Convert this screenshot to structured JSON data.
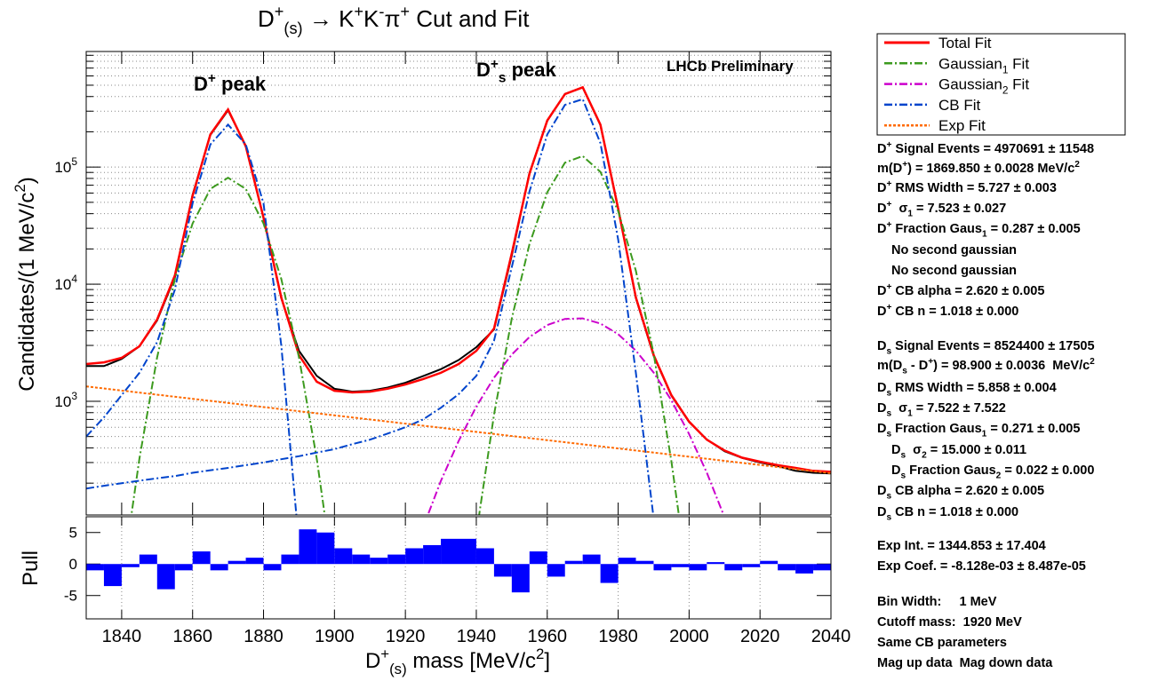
{
  "chart_data": [
    {
      "type": "line",
      "title": [
        {
          "text": "D"
        },
        {
          "text": "+",
          "script": "sup"
        },
        {
          "text": "(s)",
          "script": "sub"
        },
        {
          "text": " → K"
        },
        {
          "text": "+",
          "script": "sup"
        },
        {
          "text": "K"
        },
        {
          "text": "-",
          "script": "sup"
        },
        {
          "text": "π"
        },
        {
          "text": "+",
          "script": "sup"
        },
        {
          "text": " Cut and Fit"
        }
      ],
      "y_label": [
        {
          "text": "Candidates/(1 MeV/c"
        },
        {
          "text": "2",
          "script": "sup"
        },
        {
          "text": ")"
        }
      ],
      "log_y": true,
      "grid_y": true,
      "legend": "outside-right",
      "xlim": [
        1830,
        2040
      ],
      "xticks": [
        1840,
        1860,
        1880,
        1900,
        1920,
        1940,
        1960,
        1980,
        2000,
        2020,
        2040
      ],
      "ylim": [
        107,
        970000
      ],
      "yticks": [
        {
          "value": 1000,
          "label": "10",
          "exponent": "3"
        },
        {
          "value": 10000,
          "label": "10",
          "exponent": "4"
        },
        {
          "value": 100000,
          "label": "10",
          "exponent": "5"
        }
      ],
      "y_minor_ticks": [
        200,
        300,
        400,
        500,
        600,
        700,
        800,
        900,
        2000,
        3000,
        4000,
        5000,
        6000,
        7000,
        8000,
        9000,
        20000,
        30000,
        40000,
        50000,
        60000,
        70000,
        80000,
        90000,
        200000,
        300000,
        400000,
        500000,
        600000,
        700000,
        800000,
        900000
      ],
      "data": {
        "color": "#000000",
        "x": [
          1830,
          1835,
          1840,
          1845,
          1850,
          1855,
          1860,
          1865,
          1870,
          1875,
          1880,
          1885,
          1890,
          1895,
          1900,
          1905,
          1910,
          1915,
          1920,
          1925,
          1930,
          1935,
          1940,
          1945,
          1950,
          1955,
          1960,
          1965,
          1970,
          1975,
          1980,
          1985,
          1990,
          1995,
          2000,
          2005,
          2010,
          2015,
          2020,
          2025,
          2030,
          2035,
          2040
        ],
        "values": [
          2000,
          2000,
          2300,
          2950,
          4900,
          11500,
          58000,
          188000,
          305000,
          152000,
          37000,
          7600,
          2700,
          1650,
          1280,
          1210,
          1230,
          1310,
          1440,
          1640,
          1880,
          2250,
          2900,
          4100,
          17600,
          89000,
          248000,
          421000,
          478000,
          228000,
          44500,
          7600,
          2450,
          1120,
          665,
          472,
          375,
          328,
          300,
          280,
          255,
          245,
          242
        ]
      },
      "series": [
        {
          "name": "Total Fit",
          "color": "#ff0000",
          "line_style": "solid",
          "curves": [
            {
              "x": [
                1830,
                1835,
                1840,
                1845,
                1850,
                1855,
                1860,
                1865,
                1870,
                1875,
                1880,
                1885,
                1890,
                1895,
                1900,
                1905,
                1910,
                1915,
                1920,
                1925,
                1930,
                1935,
                1940,
                1945,
                1950,
                1955,
                1960,
                1965,
                1970,
                1975,
                1980,
                1985,
                1990,
                1995,
                2000,
                2005,
                2010,
                2015,
                2020,
                2025,
                2030,
                2035,
                2040
              ],
              "values": [
                2080,
                2150,
                2350,
                2950,
                5000,
                11900,
                57000,
                190000,
                310000,
                150000,
                37000,
                7700,
                2480,
                1470,
                1230,
                1190,
                1210,
                1280,
                1390,
                1550,
                1750,
                2080,
                2700,
                4180,
                18400,
                88000,
                250000,
                420000,
                480000,
                230000,
                44000,
                7700,
                2480,
                1130,
                670,
                470,
                380,
                330,
                305,
                285,
                270,
                255,
                250
              ]
            }
          ]
        },
        {
          "name": [
            {
              "text": "Gaussian"
            },
            {
              "text": "1",
              "script": "sub"
            },
            {
              "text": " Fit"
            }
          ],
          "color": "#3c9a1e",
          "line_style": "dash-dot",
          "curves": [
            {
              "x": [
                1840,
                1845,
                1850,
                1855,
                1860,
                1865,
                1870,
                1875,
                1880,
                1885,
                1890,
                1895,
                1900
              ],
              "values": [
                28,
                325,
                2370,
                11100,
                33000,
                65000,
                81000,
                65000,
                33000,
                11100,
                2370,
                325,
                28
              ]
            },
            {
              "x": [
                1940,
                1945,
                1950,
                1955,
                1960,
                1965,
                1970,
                1975,
                1980,
                1985,
                1990,
                1995,
                2000
              ],
              "values": [
                74,
                770,
                5100,
                22000,
                61000,
                109000,
                124000,
                91000,
                42000,
                13000,
                2550,
                310,
                25
              ]
            }
          ]
        },
        {
          "name": [
            {
              "text": "Gaussian"
            },
            {
              "text": "2",
              "script": "sub"
            },
            {
              "text": " Fit"
            }
          ],
          "color": "#cc00cc",
          "line_style": "dash-dot",
          "curves": [
            {
              "x": [
                1925,
                1930,
                1935,
                1940,
                1945,
                1950,
                1955,
                1960,
                1965,
                1970,
                1975,
                1980,
                1985,
                1990,
                1995,
                2000,
                2005,
                2010,
                2015
              ],
              "values": [
                84,
                208,
                457,
                903,
                1590,
                2510,
                3540,
                4480,
                5050,
                5100,
                4610,
                3740,
                2710,
                1760,
                1020,
                525,
                246,
                102,
                38
              ]
            }
          ]
        },
        {
          "name": "CB Fit",
          "color": "#0044cc",
          "line_style": "dash-dot",
          "curves": [
            {
              "x": [
                1830,
                1835,
                1840,
                1845,
                1850,
                1855,
                1860,
                1865,
                1870,
                1875,
                1880,
                1885,
                1890
              ],
              "values": [
                500,
                730,
                1130,
                1750,
                3200,
                9000,
                49000,
                156000,
                230000,
                156000,
                49000,
                3000,
                60
              ]
            },
            {
              "x": [
                1830,
                1835,
                1840,
                1845,
                1850,
                1855,
                1860,
                1865,
                1870,
                1875,
                1880,
                1885,
                1890,
                1895,
                1900,
                1905,
                1910,
                1915,
                1920,
                1925,
                1930,
                1935,
                1940,
                1945,
                1950,
                1955,
                1960,
                1965,
                1970,
                1975,
                1980,
                1985,
                1990
              ],
              "values": [
                180,
                190,
                200,
                210,
                220,
                230,
                245,
                258,
                270,
                285,
                300,
                320,
                340,
                365,
                390,
                430,
                470,
                530,
                600,
                700,
                880,
                1150,
                1650,
                3300,
                14000,
                62000,
                190000,
                340000,
                380000,
                160000,
                24000,
                1750,
                100
              ]
            }
          ]
        },
        {
          "name": "Exp Fit",
          "color": "#ff6a00",
          "line_style": "dotted",
          "curves": [
            {
              "x": [
                1830,
                2040
              ],
              "values": [
                1340,
                243
              ]
            }
          ]
        }
      ],
      "annotations": [
        {
          "text": [
            {
              "text": "D"
            },
            {
              "text": "+",
              "script": "sup"
            },
            {
              "text": " peak"
            }
          ]
        },
        {
          "text": [
            {
              "text": "D"
            },
            {
              "text": "+",
              "script": "sup"
            },
            {
              "text": "s",
              "script": "sub"
            },
            {
              "text": " peak"
            }
          ]
        },
        {
          "text": "LHCb Preliminary"
        }
      ],
      "fit_results": [
        [
          {
            "text": "D"
          },
          {
            "text": "+",
            "script": "sup"
          },
          {
            "text": " Signal Events = 4970691 ± 11548"
          }
        ],
        [
          {
            "text": "m(D"
          },
          {
            "text": "+",
            "script": "sup"
          },
          {
            "text": ") = 1869.850 ± 0.0028 MeV/c"
          },
          {
            "text": "2",
            "script": "sup"
          }
        ],
        [
          {
            "text": "D"
          },
          {
            "text": "+",
            "script": "sup"
          },
          {
            "text": " RMS Width = 5.727 ± 0.003"
          }
        ],
        [
          {
            "text": "D"
          },
          {
            "text": "+",
            "script": "sup"
          },
          {
            "text": "  σ"
          },
          {
            "text": "1",
            "script": "sub"
          },
          {
            "text": " = 7.523 ± 0.027"
          }
        ],
        [
          {
            "text": "D"
          },
          {
            "text": "+",
            "script": "sup"
          },
          {
            "text": " Fraction Gaus"
          },
          {
            "text": "1",
            "script": "sub"
          },
          {
            "text": " = 0.287 ± 0.005"
          }
        ],
        "No second gaussian",
        "No second gaussian",
        [
          {
            "text": "D"
          },
          {
            "text": "+",
            "script": "sup"
          },
          {
            "text": " CB alpha = 2.620 ± 0.005"
          }
        ],
        [
          {
            "text": "D"
          },
          {
            "text": "+",
            "script": "sup"
          },
          {
            "text": " CB n = 1.018 ± 0.000"
          }
        ],
        [
          {
            "text": "D"
          },
          {
            "text": "s",
            "script": "sub"
          },
          {
            "text": " Signal Events = 8524400 ± 17505"
          }
        ],
        [
          {
            "text": "m(D"
          },
          {
            "text": "s",
            "script": "sub"
          },
          {
            "text": " - D"
          },
          {
            "text": "+",
            "script": "sup"
          },
          {
            "text": ") = 98.900 ± 0.0036  MeV/c"
          },
          {
            "text": "2",
            "script": "sup"
          }
        ],
        [
          {
            "text": "D"
          },
          {
            "text": "s",
            "script": "sub"
          },
          {
            "text": " RMS Width = 5.858 ± 0.004"
          }
        ],
        [
          {
            "text": "D"
          },
          {
            "text": "s",
            "script": "sub"
          },
          {
            "text": "  σ"
          },
          {
            "text": "1",
            "script": "sub"
          },
          {
            "text": " = 7.522 ± 7.522"
          }
        ],
        [
          {
            "text": "D"
          },
          {
            "text": "s",
            "script": "sub"
          },
          {
            "text": " Fraction Gaus"
          },
          {
            "text": "1",
            "script": "sub"
          },
          {
            "text": " = 0.271 ± 0.005"
          }
        ],
        [
          {
            "text": "D"
          },
          {
            "text": "s",
            "script": "sub"
          },
          {
            "text": "  σ"
          },
          {
            "text": "2",
            "script": "sub"
          },
          {
            "text": " = 15.000 ± 0.011"
          }
        ],
        [
          {
            "text": "D"
          },
          {
            "text": "s",
            "script": "sub"
          },
          {
            "text": " Fraction Gaus"
          },
          {
            "text": "2",
            "script": "sub"
          },
          {
            "text": " = 0.022 ± 0.000"
          }
        ],
        [
          {
            "text": "D"
          },
          {
            "text": "s",
            "script": "sub"
          },
          {
            "text": " CB alpha = 2.620 ± 0.005"
          }
        ],
        [
          {
            "text": "D"
          },
          {
            "text": "s",
            "script": "sub"
          },
          {
            "text": " CB n = 1.018 ± 0.000"
          }
        ],
        "Exp Int. = 1344.853 ± 17.404",
        "Exp Coef. = -8.128e-03 ± 8.487e-05",
        "Bin Width:     1 MeV",
        "Cutoff mass:  1920 MeV",
        "Same CB parameters",
        "Mag up data  Mag down data"
      ]
    },
    {
      "type": "histogram",
      "y_label": "Pull",
      "x_label": [
        {
          "text": "D"
        },
        {
          "text": "+",
          "script": "sup"
        },
        {
          "text": "(s)",
          "script": "sub"
        },
        {
          "text": " mass [MeV/c"
        },
        {
          "text": "2",
          "script": "sup"
        },
        {
          "text": "]"
        }
      ],
      "color": "#0000ff",
      "grid_x": true,
      "xlim": [
        1830,
        2040
      ],
      "xticks": [
        1840,
        1860,
        1880,
        1900,
        1920,
        1940,
        1960,
        1980,
        2000,
        2020,
        2040
      ],
      "ylim": [
        -8.7,
        7.5
      ],
      "yticks": [
        -5,
        0,
        5
      ],
      "bins": [
        1830,
        1835,
        1840,
        1845,
        1850,
        1855,
        1860,
        1865,
        1870,
        1875,
        1880,
        1885,
        1890,
        1895,
        1900,
        1905,
        1910,
        1915,
        1920,
        1925,
        1930,
        1935,
        1940,
        1945,
        1950,
        1955,
        1960,
        1965,
        1970,
        1975,
        1980,
        1985,
        1990,
        1995,
        2000,
        2005,
        2010,
        2015,
        2020,
        2025,
        2030,
        2035,
        2040
      ],
      "values": [
        -1,
        -3.5,
        -0.5,
        1.5,
        -4,
        -1,
        2,
        -1,
        0.5,
        1,
        -1,
        1.5,
        5.5,
        5,
        2.5,
        1.5,
        1,
        1.5,
        2.5,
        3,
        4,
        4,
        2.5,
        -2,
        -4.5,
        2,
        -2,
        0.5,
        1.5,
        -3,
        1,
        0.5,
        -1,
        -0.5,
        -1,
        0.3,
        -1,
        -0.5,
        0.5,
        -1,
        -1.5,
        -1
      ]
    }
  ]
}
